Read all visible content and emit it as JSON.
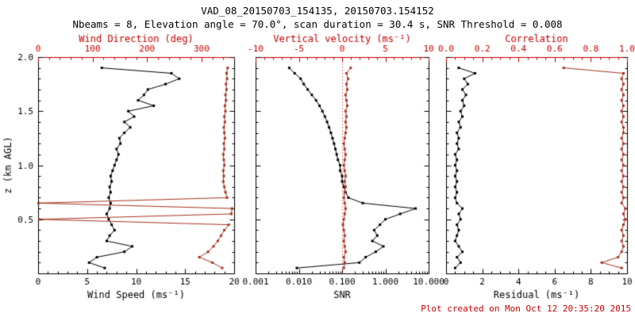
{
  "header": {
    "title": "VAD_08_20150703_154135, 20150703.154152",
    "subtitle": "Nbeams = 8, Elevation angle = 70.0°, scan duration = 30.4 s, SNR Threshold = 0.008"
  },
  "footer": {
    "created": "Plot created on Mon Oct 12 20:35:20 2015"
  },
  "colors": {
    "background": "#ffffff",
    "black": "#000000",
    "axis_red": "#cc0000",
    "data_red": "#a63420"
  },
  "chart_data": {
    "type": "line",
    "marker": "square",
    "z_axis": {
      "label": "z (km AGL)",
      "range": [
        0,
        2
      ],
      "ticks": [
        0,
        0.5,
        1.0,
        1.5,
        2.0
      ],
      "tick_labels": [
        "",
        "0.5",
        "1.0",
        "1.5",
        "2.0"
      ],
      "minor_step": 0.1
    },
    "z_levels": [
      0.05,
      0.1,
      0.15,
      0.2,
      0.25,
      0.3,
      0.35,
      0.4,
      0.45,
      0.5,
      0.55,
      0.6,
      0.65,
      0.7,
      0.75,
      0.8,
      0.85,
      0.9,
      0.95,
      1.0,
      1.05,
      1.1,
      1.15,
      1.2,
      1.25,
      1.3,
      1.35,
      1.4,
      1.45,
      1.5,
      1.55,
      1.6,
      1.65,
      1.7,
      1.75,
      1.8,
      1.85,
      1.9
    ],
    "panels": [
      {
        "name": "wind",
        "top_axis": {
          "label": "Wind Direction (deg)",
          "scale": "linear",
          "range": [
            0,
            360
          ],
          "ticks": [
            0,
            100,
            200,
            300
          ],
          "tick_labels": [
            "0",
            "100",
            "200",
            "300"
          ],
          "minor_step": 20
        },
        "bottom_axis": {
          "label": "Wind Speed (ms⁻¹)",
          "scale": "linear",
          "range": [
            0,
            20
          ],
          "ticks": [
            0,
            5,
            10,
            15,
            20
          ],
          "tick_labels": [
            "0",
            "5",
            "10",
            "15",
            "20"
          ],
          "minor_step": 1
        },
        "series": [
          {
            "name": "wind-speed",
            "axis": "bottom",
            "color": "black",
            "values": [
              6.8,
              5.2,
              6.0,
              8.8,
              9.6,
              7.0,
              7.3,
              7.8,
              7.5,
              7.2,
              7.0,
              7.3,
              7.4,
              7.2,
              7.4,
              7.3,
              7.5,
              7.4,
              7.6,
              7.8,
              8.0,
              8.2,
              8.0,
              8.4,
              8.3,
              8.8,
              9.4,
              8.8,
              9.8,
              9.2,
              11.8,
              10.2,
              10.8,
              11.2,
              13.0,
              14.4,
              13.6,
              6.5
            ]
          },
          {
            "name": "wind-direction",
            "axis": "top",
            "color": "data_red",
            "values": [
              338,
              320,
              296,
              312,
              322,
              330,
              336,
              342,
              350,
              2,
              355,
              356,
              1,
              347,
              344,
              342,
              340,
              341,
              340,
              342,
              341,
              340,
              342,
              341,
              343,
              342,
              341,
              343,
              342,
              344,
              343,
              345,
              344,
              346,
              345,
              347,
              346,
              348
            ]
          }
        ]
      },
      {
        "name": "snr-velocity",
        "top_axis": {
          "label": "Vertical velocity (ms⁻¹)",
          "scale": "linear",
          "range": [
            -10,
            10
          ],
          "ticks": [
            -10,
            -5,
            0,
            5,
            10
          ],
          "tick_labels": [
            "-10",
            "-5",
            "0",
            "5",
            "10"
          ],
          "minor_step": 1
        },
        "bottom_axis": {
          "label": "SNR",
          "scale": "log",
          "range": [
            0.001,
            10
          ],
          "ticks": [
            0.001,
            0.01,
            0.1,
            1,
            10
          ],
          "tick_labels": [
            "0.001",
            "0.010",
            "0.100",
            "1.000",
            "10.000"
          ]
        },
        "ref_line": {
          "axis": "top",
          "value": 0,
          "style": "dotted"
        },
        "series": [
          {
            "name": "snr",
            "axis": "bottom",
            "color": "black",
            "values": [
              0.009,
              0.25,
              0.35,
              0.6,
              0.9,
              0.5,
              0.65,
              0.55,
              0.75,
              1.0,
              2.2,
              5.0,
              0.3,
              0.14,
              0.12,
              0.11,
              0.1,
              0.1,
              0.09,
              0.09,
              0.08,
              0.075,
              0.07,
              0.065,
              0.06,
              0.055,
              0.05,
              0.045,
              0.04,
              0.035,
              0.03,
              0.025,
              0.02,
              0.016,
              0.013,
              0.011,
              0.008,
              0.006
            ]
          },
          {
            "name": "vertical-velocity",
            "axis": "top",
            "color": "data_red",
            "values": [
              0.2,
              0.3,
              0.2,
              0.4,
              0.3,
              0.2,
              0.3,
              0.2,
              0.1,
              0.2,
              0.3,
              0.4,
              0.3,
              0.2,
              0.3,
              0.4,
              0.3,
              0.4,
              0.3,
              0.2,
              0.3,
              0.4,
              0.3,
              0.2,
              0.3,
              0.4,
              0.5,
              0.4,
              0.5,
              0.4,
              0.6,
              0.5,
              0.4,
              0.6,
              0.5,
              0.7,
              0.5,
              1.0
            ]
          }
        ]
      },
      {
        "name": "residual-correlation",
        "top_axis": {
          "label": "Correlation",
          "scale": "linear",
          "range": [
            0,
            1
          ],
          "ticks": [
            0,
            0.2,
            0.4,
            0.6,
            0.8,
            1.0
          ],
          "tick_labels": [
            "0.0",
            "0.2",
            "0.4",
            "0.6",
            "0.8",
            "1.0"
          ],
          "minor_step": 0.05
        },
        "bottom_axis": {
          "label": "Residual (ms⁻¹)",
          "scale": "linear",
          "range": [
            0,
            10
          ],
          "ticks": [
            0,
            2,
            4,
            6,
            8,
            10
          ],
          "tick_labels": [
            "0",
            "2",
            "4",
            "6",
            "8",
            "10"
          ],
          "minor_step": 0.5
        },
        "series": [
          {
            "name": "residual",
            "axis": "bottom",
            "color": "black",
            "values": [
              0.5,
              0.8,
              0.6,
              0.9,
              0.7,
              0.5,
              0.6,
              0.7,
              0.6,
              0.8,
              0.7,
              0.9,
              0.6,
              0.5,
              0.6,
              0.5,
              0.6,
              0.5,
              0.6,
              0.5,
              0.6,
              0.5,
              0.7,
              0.6,
              0.7,
              0.6,
              0.8,
              0.7,
              0.9,
              0.8,
              1.0,
              0.9,
              1.1,
              0.9,
              1.2,
              1.0,
              1.6,
              0.7
            ]
          },
          {
            "name": "correlation",
            "axis": "top",
            "color": "data_red",
            "values": [
              0.97,
              0.86,
              0.95,
              0.97,
              0.98,
              0.97,
              0.98,
              0.97,
              0.98,
              0.99,
              0.98,
              0.99,
              0.97,
              0.98,
              0.97,
              0.98,
              0.97,
              0.98,
              0.97,
              0.98,
              0.97,
              0.98,
              0.97,
              0.98,
              0.97,
              0.98,
              0.98,
              0.97,
              0.98,
              0.97,
              0.98,
              0.97,
              0.98,
              0.97,
              0.98,
              0.97,
              0.98,
              0.65
            ]
          }
        ]
      }
    ]
  }
}
